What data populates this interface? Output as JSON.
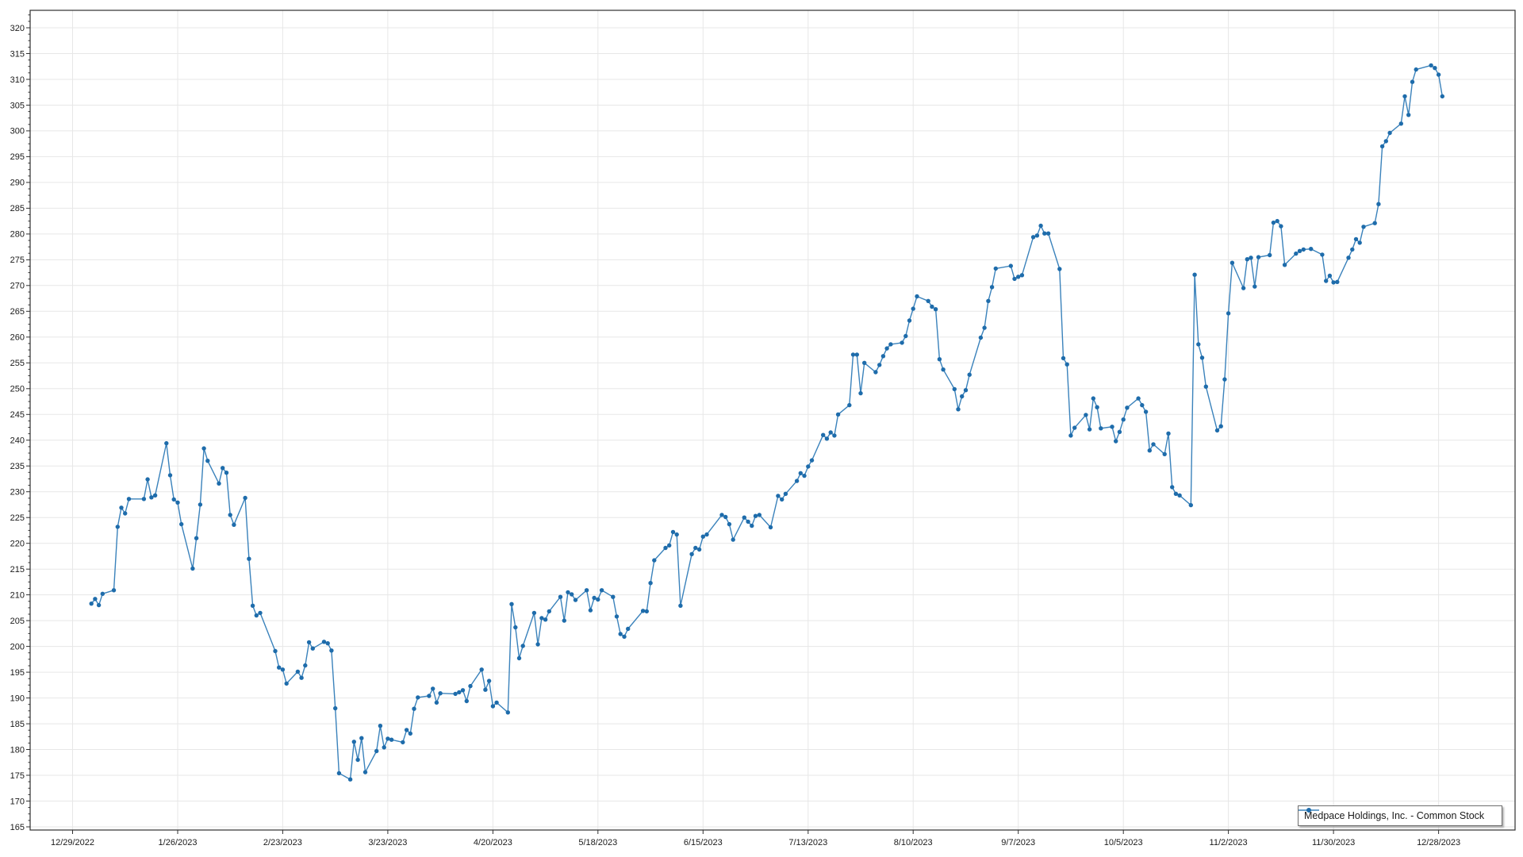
{
  "chart_data": {
    "type": "line",
    "title": "",
    "xlabel": "",
    "ylabel": "",
    "grid": true,
    "legend_position": "bottom-right",
    "ylim": [
      165,
      320
    ],
    "y_tick_step": 5,
    "y_minor_tick_step": 1.25,
    "y_tick_labels": [
      "165",
      "170",
      "175",
      "180",
      "185",
      "190",
      "195",
      "200",
      "205",
      "210",
      "215",
      "220",
      "225",
      "230",
      "235",
      "240",
      "245",
      "250",
      "255",
      "260",
      "265",
      "270",
      "275",
      "280",
      "285",
      "290",
      "295",
      "300",
      "305",
      "310",
      "315",
      "320"
    ],
    "x_tick_labels": [
      "12/29/2022",
      "1/26/2023",
      "2/23/2023",
      "3/23/2023",
      "4/20/2023",
      "5/18/2023",
      "6/15/2023",
      "7/13/2023",
      "8/10/2023",
      "9/7/2023",
      "10/5/2023",
      "11/2/2023",
      "11/30/2023",
      "12/28/2023"
    ],
    "x_tick_dates": [
      "2022-12-29",
      "2023-01-26",
      "2023-02-23",
      "2023-03-23",
      "2023-04-20",
      "2023-05-18",
      "2023-06-15",
      "2023-07-13",
      "2023-08-10",
      "2023-09-07",
      "2023-10-05",
      "2023-11-02",
      "2023-11-30",
      "2023-12-28"
    ],
    "series": [
      {
        "name": "Medpace Holdings, Inc. - Common Stock",
        "line_color": "#3a82bb",
        "marker_color": "#1e6cab",
        "points": [
          [
            "2023-01-03",
            208.3
          ],
          [
            "2023-01-04",
            209.2
          ],
          [
            "2023-01-05",
            208.0
          ],
          [
            "2023-01-06",
            210.2
          ],
          [
            "2023-01-09",
            210.9
          ],
          [
            "2023-01-10",
            223.2
          ],
          [
            "2023-01-11",
            226.9
          ],
          [
            "2023-01-12",
            225.8
          ],
          [
            "2023-01-13",
            228.6
          ],
          [
            "2023-01-17",
            228.6
          ],
          [
            "2023-01-18",
            232.4
          ],
          [
            "2023-01-19",
            228.9
          ],
          [
            "2023-01-20",
            229.3
          ],
          [
            "2023-01-23",
            239.4
          ],
          [
            "2023-01-24",
            233.2
          ],
          [
            "2023-01-25",
            228.5
          ],
          [
            "2023-01-26",
            227.9
          ],
          [
            "2023-01-27",
            223.7
          ],
          [
            "2023-01-30",
            215.1
          ],
          [
            "2023-01-31",
            221.0
          ],
          [
            "2023-02-01",
            227.5
          ],
          [
            "2023-02-02",
            238.4
          ],
          [
            "2023-02-03",
            236.0
          ],
          [
            "2023-02-06",
            231.6
          ],
          [
            "2023-02-07",
            234.6
          ],
          [
            "2023-02-08",
            233.7
          ],
          [
            "2023-02-09",
            225.5
          ],
          [
            "2023-02-10",
            223.6
          ],
          [
            "2023-02-13",
            228.8
          ],
          [
            "2023-02-14",
            217.0
          ],
          [
            "2023-02-15",
            207.9
          ],
          [
            "2023-02-16",
            206.0
          ],
          [
            "2023-02-17",
            206.5
          ],
          [
            "2023-02-21",
            199.1
          ],
          [
            "2023-02-22",
            195.9
          ],
          [
            "2023-02-23",
            195.5
          ],
          [
            "2023-02-24",
            192.8
          ],
          [
            "2023-02-27",
            195.1
          ],
          [
            "2023-02-28",
            193.9
          ],
          [
            "2023-03-01",
            196.3
          ],
          [
            "2023-03-02",
            200.8
          ],
          [
            "2023-03-03",
            199.6
          ],
          [
            "2023-03-06",
            200.9
          ],
          [
            "2023-03-07",
            200.6
          ],
          [
            "2023-03-08",
            199.2
          ],
          [
            "2023-03-09",
            188.0
          ],
          [
            "2023-03-10",
            175.4
          ],
          [
            "2023-03-13",
            174.2
          ],
          [
            "2023-03-14",
            181.5
          ],
          [
            "2023-03-15",
            178.0
          ],
          [
            "2023-03-16",
            182.2
          ],
          [
            "2023-03-17",
            175.6
          ],
          [
            "2023-03-20",
            179.7
          ],
          [
            "2023-03-21",
            184.6
          ],
          [
            "2023-03-22",
            180.4
          ],
          [
            "2023-03-23",
            182.1
          ],
          [
            "2023-03-24",
            181.9
          ],
          [
            "2023-03-27",
            181.4
          ],
          [
            "2023-03-28",
            183.8
          ],
          [
            "2023-03-29",
            183.1
          ],
          [
            "2023-03-30",
            187.9
          ],
          [
            "2023-03-31",
            190.1
          ],
          [
            "2023-04-03",
            190.4
          ],
          [
            "2023-04-04",
            191.8
          ],
          [
            "2023-04-05",
            189.1
          ],
          [
            "2023-04-06",
            190.9
          ],
          [
            "2023-04-10",
            190.8
          ],
          [
            "2023-04-11",
            191.1
          ],
          [
            "2023-04-12",
            191.5
          ],
          [
            "2023-04-13",
            189.4
          ],
          [
            "2023-04-14",
            192.3
          ],
          [
            "2023-04-17",
            195.5
          ],
          [
            "2023-04-18",
            191.6
          ],
          [
            "2023-04-19",
            193.3
          ],
          [
            "2023-04-20",
            188.4
          ],
          [
            "2023-04-21",
            189.1
          ],
          [
            "2023-04-24",
            187.2
          ],
          [
            "2023-04-25",
            208.2
          ],
          [
            "2023-04-26",
            203.7
          ],
          [
            "2023-04-27",
            197.7
          ],
          [
            "2023-04-28",
            200.1
          ],
          [
            "2023-05-01",
            206.5
          ],
          [
            "2023-05-02",
            200.4
          ],
          [
            "2023-05-03",
            205.5
          ],
          [
            "2023-05-04",
            205.2
          ],
          [
            "2023-05-05",
            206.8
          ],
          [
            "2023-05-08",
            209.6
          ],
          [
            "2023-05-09",
            205.0
          ],
          [
            "2023-05-10",
            210.5
          ],
          [
            "2023-05-11",
            210.1
          ],
          [
            "2023-05-12",
            209.0
          ],
          [
            "2023-05-15",
            210.9
          ],
          [
            "2023-05-16",
            207.0
          ],
          [
            "2023-05-17",
            209.4
          ],
          [
            "2023-05-18",
            209.1
          ],
          [
            "2023-05-19",
            210.9
          ],
          [
            "2023-05-22",
            209.6
          ],
          [
            "2023-05-23",
            205.8
          ],
          [
            "2023-05-24",
            202.4
          ],
          [
            "2023-05-25",
            201.9
          ],
          [
            "2023-05-26",
            203.4
          ],
          [
            "2023-05-30",
            206.9
          ],
          [
            "2023-05-31",
            206.8
          ],
          [
            "2023-06-01",
            212.3
          ],
          [
            "2023-06-02",
            216.7
          ],
          [
            "2023-06-05",
            219.1
          ],
          [
            "2023-06-06",
            219.6
          ],
          [
            "2023-06-07",
            222.2
          ],
          [
            "2023-06-08",
            221.7
          ],
          [
            "2023-06-09",
            207.9
          ],
          [
            "2023-06-12",
            217.9
          ],
          [
            "2023-06-13",
            219.1
          ],
          [
            "2023-06-14",
            218.8
          ],
          [
            "2023-06-15",
            221.3
          ],
          [
            "2023-06-16",
            221.7
          ],
          [
            "2023-06-20",
            225.5
          ],
          [
            "2023-06-21",
            225.1
          ],
          [
            "2023-06-22",
            223.7
          ],
          [
            "2023-06-23",
            220.7
          ],
          [
            "2023-06-26",
            225.0
          ],
          [
            "2023-06-27",
            224.2
          ],
          [
            "2023-06-28",
            223.4
          ],
          [
            "2023-06-29",
            225.3
          ],
          [
            "2023-06-30",
            225.5
          ],
          [
            "2023-07-03",
            223.1
          ],
          [
            "2023-07-05",
            229.2
          ],
          [
            "2023-07-06",
            228.5
          ],
          [
            "2023-07-07",
            229.6
          ],
          [
            "2023-07-10",
            232.1
          ],
          [
            "2023-07-11",
            233.6
          ],
          [
            "2023-07-12",
            233.1
          ],
          [
            "2023-07-13",
            234.9
          ],
          [
            "2023-07-14",
            236.1
          ],
          [
            "2023-07-17",
            241.0
          ],
          [
            "2023-07-18",
            240.3
          ],
          [
            "2023-07-19",
            241.5
          ],
          [
            "2023-07-20",
            240.9
          ],
          [
            "2023-07-21",
            245.0
          ],
          [
            "2023-07-24",
            246.8
          ],
          [
            "2023-07-25",
            256.6
          ],
          [
            "2023-07-26",
            256.6
          ],
          [
            "2023-07-27",
            249.1
          ],
          [
            "2023-07-28",
            255.0
          ],
          [
            "2023-07-31",
            253.2
          ],
          [
            "2023-08-01",
            254.6
          ],
          [
            "2023-08-02",
            256.3
          ],
          [
            "2023-08-03",
            257.8
          ],
          [
            "2023-08-04",
            258.6
          ],
          [
            "2023-08-07",
            258.9
          ],
          [
            "2023-08-08",
            260.2
          ],
          [
            "2023-08-09",
            263.2
          ],
          [
            "2023-08-10",
            265.5
          ],
          [
            "2023-08-11",
            267.9
          ],
          [
            "2023-08-14",
            267.0
          ],
          [
            "2023-08-15",
            265.9
          ],
          [
            "2023-08-16",
            265.4
          ],
          [
            "2023-08-17",
            255.7
          ],
          [
            "2023-08-18",
            253.7
          ],
          [
            "2023-08-21",
            249.9
          ],
          [
            "2023-08-22",
            246.0
          ],
          [
            "2023-08-23",
            248.5
          ],
          [
            "2023-08-24",
            249.7
          ],
          [
            "2023-08-25",
            252.7
          ],
          [
            "2023-08-28",
            259.9
          ],
          [
            "2023-08-29",
            261.8
          ],
          [
            "2023-08-30",
            267.0
          ],
          [
            "2023-08-31",
            269.7
          ],
          [
            "2023-09-01",
            273.3
          ],
          [
            "2023-09-05",
            273.8
          ],
          [
            "2023-09-06",
            271.3
          ],
          [
            "2023-09-07",
            271.7
          ],
          [
            "2023-09-08",
            272.0
          ],
          [
            "2023-09-11",
            279.4
          ],
          [
            "2023-09-12",
            279.7
          ],
          [
            "2023-09-13",
            281.6
          ],
          [
            "2023-09-14",
            280.1
          ],
          [
            "2023-09-15",
            280.1
          ],
          [
            "2023-09-18",
            273.2
          ],
          [
            "2023-09-19",
            255.9
          ],
          [
            "2023-09-20",
            254.7
          ],
          [
            "2023-09-21",
            240.9
          ],
          [
            "2023-09-22",
            242.4
          ],
          [
            "2023-09-25",
            244.9
          ],
          [
            "2023-09-26",
            242.1
          ],
          [
            "2023-09-27",
            248.1
          ],
          [
            "2023-09-28",
            246.4
          ],
          [
            "2023-09-29",
            242.3
          ],
          [
            "2023-10-02",
            242.6
          ],
          [
            "2023-10-03",
            239.8
          ],
          [
            "2023-10-04",
            241.6
          ],
          [
            "2023-10-05",
            244.0
          ],
          [
            "2023-10-06",
            246.3
          ],
          [
            "2023-10-09",
            248.1
          ],
          [
            "2023-10-10",
            246.8
          ],
          [
            "2023-10-11",
            245.5
          ],
          [
            "2023-10-12",
            238.0
          ],
          [
            "2023-10-13",
            239.2
          ],
          [
            "2023-10-16",
            237.3
          ],
          [
            "2023-10-17",
            241.3
          ],
          [
            "2023-10-18",
            230.9
          ],
          [
            "2023-10-19",
            229.6
          ],
          [
            "2023-10-20",
            229.3
          ],
          [
            "2023-10-23",
            227.4
          ],
          [
            "2023-10-24",
            272.1
          ],
          [
            "2023-10-25",
            258.6
          ],
          [
            "2023-10-26",
            256.0
          ],
          [
            "2023-10-27",
            250.4
          ],
          [
            "2023-10-30",
            241.9
          ],
          [
            "2023-10-31",
            242.7
          ],
          [
            "2023-11-01",
            251.8
          ],
          [
            "2023-11-02",
            264.6
          ],
          [
            "2023-11-03",
            274.4
          ],
          [
            "2023-11-06",
            269.5
          ],
          [
            "2023-11-07",
            275.1
          ],
          [
            "2023-11-08",
            275.4
          ],
          [
            "2023-11-09",
            269.8
          ],
          [
            "2023-11-10",
            275.5
          ],
          [
            "2023-11-13",
            275.9
          ],
          [
            "2023-11-14",
            282.2
          ],
          [
            "2023-11-15",
            282.5
          ],
          [
            "2023-11-16",
            281.5
          ],
          [
            "2023-11-17",
            274.0
          ],
          [
            "2023-11-20",
            276.2
          ],
          [
            "2023-11-21",
            276.7
          ],
          [
            "2023-11-22",
            277.0
          ],
          [
            "2023-11-24",
            277.1
          ],
          [
            "2023-11-27",
            276.0
          ],
          [
            "2023-11-28",
            270.9
          ],
          [
            "2023-11-29",
            271.9
          ],
          [
            "2023-11-30",
            270.6
          ],
          [
            "2023-12-01",
            270.7
          ],
          [
            "2023-12-04",
            275.4
          ],
          [
            "2023-12-05",
            277.0
          ],
          [
            "2023-12-06",
            279.0
          ],
          [
            "2023-12-07",
            278.3
          ],
          [
            "2023-12-08",
            281.4
          ],
          [
            "2023-12-11",
            282.1
          ],
          [
            "2023-12-12",
            285.8
          ],
          [
            "2023-12-13",
            297.0
          ],
          [
            "2023-12-14",
            298.0
          ],
          [
            "2023-12-15",
            299.6
          ],
          [
            "2023-12-18",
            301.4
          ],
          [
            "2023-12-19",
            306.7
          ],
          [
            "2023-12-20",
            303.1
          ],
          [
            "2023-12-21",
            309.5
          ],
          [
            "2023-12-22",
            311.9
          ],
          [
            "2023-12-26",
            312.7
          ],
          [
            "2023-12-27",
            312.2
          ],
          [
            "2023-12-28",
            310.9
          ],
          [
            "2023-12-29",
            306.7
          ]
        ]
      }
    ]
  },
  "colors": {
    "background": "#ffffff",
    "grid": "#e7e7e7",
    "axis": "#2f2f2f",
    "tick_label": "#1a1a1a",
    "line": "#3a82bb",
    "marker": "#1e6cab",
    "legend_border": "#6e6e6e"
  },
  "legend": {
    "label": "Medpace Holdings, Inc. - Common Stock"
  }
}
